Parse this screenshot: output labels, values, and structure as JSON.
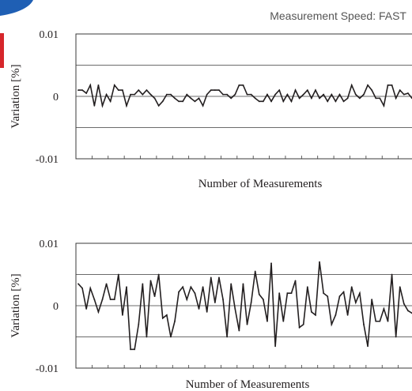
{
  "header": {
    "speed_label": "Measurement Speed: FAST"
  },
  "colors": {
    "line": "#231f20",
    "grid": "#3a3a3a",
    "text": "#231f20",
    "header_text": "#555555",
    "corner_blue": "#1f5fb4",
    "corner_red": "#d6262b"
  },
  "chart_data": [
    {
      "type": "line",
      "title": "",
      "xlabel": "Number of Measurements",
      "ylabel": "Variation [%]",
      "ylim": [
        -0.01,
        0.01
      ],
      "yticks": [
        -0.01,
        0,
        0.01
      ],
      "ytick_labels": [
        "-0.01",
        "0",
        "0.01"
      ],
      "grid": "horizontal",
      "series": [
        {
          "values": [
            0.001,
            0.001,
            0.0005,
            0.0018,
            -0.0015,
            0.0018,
            -0.0015,
            0.0003,
            -0.0008,
            0.0018,
            0.001,
            0.001,
            -0.0015,
            0.0003,
            0.0003,
            0.001,
            0.0003,
            0.001,
            0.0003,
            -0.0003,
            -0.0015,
            -0.0008,
            0.0003,
            0.0003,
            -0.0003,
            -0.0008,
            -0.0008,
            0.0003,
            -0.0003,
            -0.0008,
            -0.0003,
            -0.0015,
            0.0003,
            0.001,
            0.001,
            0.001,
            0.0003,
            0.0003,
            -0.0003,
            0.0003,
            0.0018,
            0.0018,
            0.0003,
            0.0003,
            -0.0003,
            -0.0008,
            -0.0008,
            0.0003,
            -0.0008,
            0.0003,
            0.001,
            -0.0008,
            0.0003,
            -0.0008,
            0.001,
            -0.0003,
            0.0003,
            0.001,
            -0.0003,
            0.001,
            -0.0003,
            0.0003,
            -0.0008,
            0.0003,
            -0.0008,
            0.0003,
            -0.0008,
            -0.0003,
            0.0018,
            0.0003,
            -0.0003,
            0.0003,
            0.0018,
            0.001,
            -0.0003,
            -0.0003,
            -0.0015,
            0.0018,
            0.0018,
            -0.0003,
            0.001,
            0.0003,
            0.0005,
            -0.0003
          ]
        }
      ]
    },
    {
      "type": "line",
      "title": "",
      "xlabel": "Number of Measurements",
      "ylabel": "Variation [%]",
      "ylim": [
        -0.01,
        0.01
      ],
      "yticks": [
        -0.01,
        0,
        0.01
      ],
      "ytick_labels": [
        "-0.01",
        "0",
        "0.01"
      ],
      "grid": "horizontal",
      "series": [
        {
          "values": [
            0.0035,
            0.0028,
            -0.0005,
            0.0028,
            0.001,
            -0.001,
            0.001,
            0.0035,
            0.001,
            0.001,
            0.005,
            -0.0015,
            0.003,
            -0.007,
            -0.007,
            -0.003,
            0.0035,
            -0.005,
            0.004,
            0.0015,
            0.005,
            -0.002,
            -0.0015,
            -0.005,
            -0.0025,
            0.0022,
            0.003,
            0.001,
            0.003,
            0.002,
            -0.0005,
            0.003,
            -0.001,
            0.0045,
            0.0005,
            0.0045,
            0.001,
            -0.005,
            0.0035,
            -0.0005,
            -0.004,
            0.0035,
            -0.003,
            0.0005,
            0.0055,
            0.0018,
            0.001,
            -0.0025,
            0.0068,
            -0.0065,
            0.002,
            -0.0025,
            0.002,
            0.002,
            0.004,
            -0.0035,
            -0.003,
            0.003,
            -0.001,
            -0.0015,
            0.007,
            0.002,
            0.0015,
            -0.003,
            -0.0015,
            0.0015,
            0.0022,
            -0.0015,
            0.003,
            0.0005,
            0.002,
            -0.003,
            -0.0065,
            0.001,
            -0.0025,
            -0.0025,
            -0.0005,
            -0.0025,
            0.005,
            -0.005,
            0.003,
            0.0003,
            -0.0008,
            -0.0012
          ]
        }
      ]
    }
  ]
}
